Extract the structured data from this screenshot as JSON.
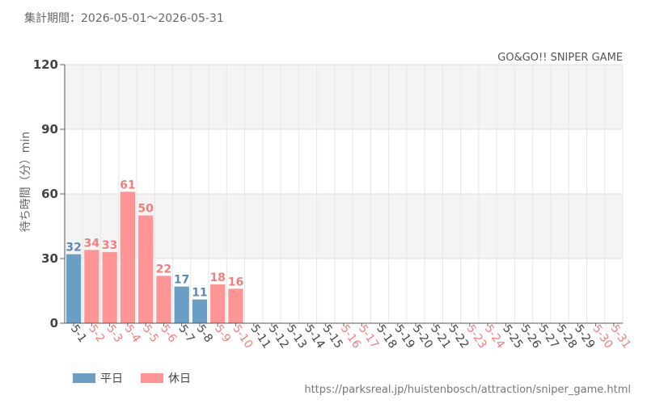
{
  "header": {
    "period": "集計期間：2026-05-01～2026-05-31"
  },
  "footer": {
    "url": "https://parksreal.jp/huistenbosch/attraction/sniper_game.html"
  },
  "chart_data": {
    "type": "bar",
    "subtitle": "GO&GO!! SNIPER GAME",
    "ylabel": "待ち時間（分）min",
    "ylim": [
      0,
      120
    ],
    "yticks": [
      0,
      30,
      60,
      90,
      120
    ],
    "grid": true,
    "legend_position": "bottom-left",
    "categories": [
      "5-1",
      "5-2",
      "5-3",
      "5-4",
      "5-5",
      "5-6",
      "5-7",
      "5-8",
      "5-9",
      "5-10",
      "5-11",
      "5-12",
      "5-13",
      "5-14",
      "5-15",
      "5-16",
      "5-17",
      "5-18",
      "5-19",
      "5-20",
      "5-21",
      "5-22",
      "5-23",
      "5-24",
      "5-25",
      "5-26",
      "5-27",
      "5-28",
      "5-29",
      "5-30",
      "5-31"
    ],
    "holiday": [
      false,
      true,
      true,
      true,
      true,
      true,
      false,
      false,
      true,
      true,
      false,
      false,
      false,
      false,
      false,
      true,
      true,
      false,
      false,
      false,
      false,
      false,
      true,
      true,
      false,
      false,
      false,
      false,
      false,
      true,
      true
    ],
    "values": [
      32,
      34,
      33,
      61,
      50,
      22,
      17,
      11,
      18,
      16,
      null,
      null,
      null,
      null,
      null,
      null,
      null,
      null,
      null,
      null,
      null,
      null,
      null,
      null,
      null,
      null,
      null,
      null,
      null,
      null,
      null
    ],
    "legend": [
      {
        "name": "平日",
        "color": "#6a9ec5"
      },
      {
        "name": "休日",
        "color": "#ff9494"
      }
    ],
    "colors": {
      "weekday": "#6a9ec5",
      "holiday": "#ff9494",
      "weekday_text": "#5a8ab8",
      "holiday_text": "#f08080",
      "normal_tick": "#444444"
    }
  }
}
